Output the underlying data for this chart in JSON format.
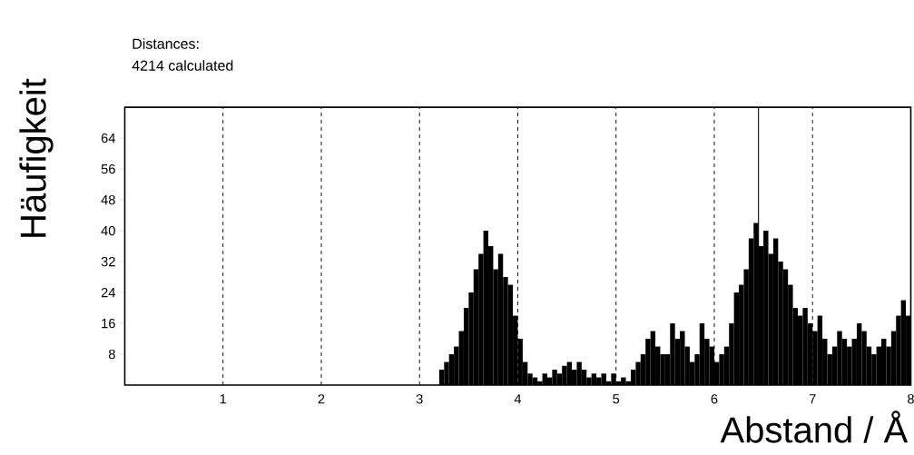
{
  "chart_data": {
    "type": "histogram",
    "xlabel": "Abstand / Å",
    "ylabel": "Häufigkeit",
    "annotations": [
      "Distances:",
      "4214 calculated"
    ],
    "color": "#000000",
    "grid": "x",
    "xlim": [
      0,
      8
    ],
    "ylim": [
      0,
      72
    ],
    "xticks": [
      1,
      2,
      3,
      4,
      5,
      6,
      7,
      8
    ],
    "yticks": [
      8,
      16,
      24,
      32,
      40,
      48,
      56,
      64
    ],
    "ref_lines": [
      {
        "axis": "x",
        "value": 6.45,
        "color": "#000000",
        "line_style": "solid"
      }
    ],
    "bins": [
      3.2,
      3.25,
      3.3,
      3.35,
      3.4,
      3.45,
      3.5,
      3.55,
      3.6,
      3.65,
      3.7,
      3.75,
      3.8,
      3.85,
      3.9,
      3.95,
      4.0,
      4.05,
      4.1,
      4.15,
      4.2,
      4.25,
      4.3,
      4.35,
      4.4,
      4.45,
      4.5,
      4.55,
      4.6,
      4.65,
      4.7,
      4.75,
      4.8,
      4.85,
      4.9,
      4.95,
      5.0,
      5.05,
      5.1,
      5.15,
      5.2,
      5.25,
      5.3,
      5.35,
      5.4,
      5.45,
      5.5,
      5.55,
      5.6,
      5.65,
      5.7,
      5.75,
      5.8,
      5.85,
      5.9,
      5.95,
      6.0,
      6.05,
      6.1,
      6.15,
      6.2,
      6.25,
      6.3,
      6.35,
      6.4,
      6.45,
      6.5,
      6.55,
      6.6,
      6.65,
      6.7,
      6.75,
      6.8,
      6.85,
      6.9,
      6.95,
      7.0,
      7.05,
      7.1,
      7.15,
      7.2,
      7.25,
      7.3,
      7.35,
      7.4,
      7.45,
      7.5,
      7.55,
      7.6,
      7.65,
      7.7,
      7.75,
      7.8,
      7.85,
      7.9,
      7.95,
      8.0
    ],
    "values": [
      4,
      6,
      8,
      10,
      14,
      20,
      24,
      30,
      34,
      40,
      36,
      30,
      34,
      28,
      26,
      18,
      12,
      6,
      3,
      2,
      1,
      3,
      2,
      4,
      3,
      5,
      6,
      4,
      6,
      4,
      2,
      3,
      2,
      3,
      1,
      3,
      1,
      2,
      1,
      4,
      6,
      8,
      12,
      14,
      10,
      8,
      8,
      16,
      12,
      14,
      10,
      6,
      8,
      16,
      12,
      10,
      6,
      8,
      10,
      16,
      24,
      26,
      30,
      38,
      42,
      36,
      40,
      34,
      38,
      32,
      30,
      26,
      20,
      18,
      20,
      16,
      14,
      18,
      12,
      8,
      10,
      14,
      12,
      10,
      12,
      16,
      14,
      10,
      8,
      10,
      12,
      10,
      14,
      18,
      22,
      18
    ]
  }
}
